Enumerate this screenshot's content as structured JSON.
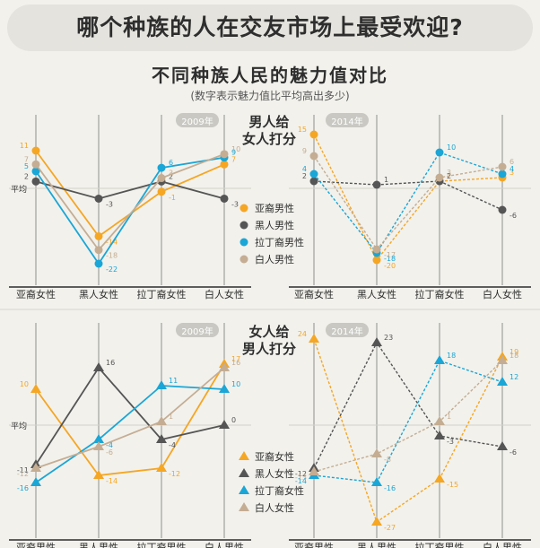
{
  "header": {
    "title": "哪个种族的人在交友市场上最受欢迎?",
    "subtitle": "不同种族人民的魅力值对比",
    "note": "(数字表示魅力值比平均高出多少)"
  },
  "colors": {
    "asian": "#f5a623",
    "black": "#555555",
    "latino": "#1aa6d6",
    "white": "#c4ad93"
  },
  "average_label": "平均",
  "chart_data": [
    {
      "type": "line",
      "panel": "men-2009",
      "year": "2009年",
      "title": "男人给\n女人打分",
      "categories": [
        "亚裔女性",
        "黑人女性",
        "拉丁裔女性",
        "白人女性"
      ],
      "ylim": [
        -25,
        15
      ],
      "series": [
        {
          "name": "亚裔男性",
          "color": "asian",
          "values": [
            11,
            -14,
            -1,
            7
          ]
        },
        {
          "name": "黑人男性",
          "color": "black",
          "values": [
            2,
            -3,
            2,
            -3
          ]
        },
        {
          "name": "拉丁裔男性",
          "color": "latino",
          "values": [
            5,
            -22,
            6,
            9
          ]
        },
        {
          "name": "白人男性",
          "color": "white",
          "values": [
            7,
            -18,
            3,
            10
          ]
        }
      ]
    },
    {
      "type": "line",
      "panel": "men-2014",
      "year": "2014年",
      "categories": [
        "亚裔女性",
        "黑人女性",
        "拉丁裔女性",
        "白人女性"
      ],
      "ylim": [
        -25,
        17
      ],
      "series": [
        {
          "name": "亚裔男性",
          "color": "asian",
          "values": [
            15,
            -20,
            2,
            3
          ]
        },
        {
          "name": "黑人男性",
          "color": "black",
          "values": [
            2,
            1,
            2,
            -6
          ]
        },
        {
          "name": "拉丁裔男性",
          "color": "latino",
          "values": [
            4,
            -18,
            10,
            4
          ]
        },
        {
          "name": "白人男性",
          "color": "white",
          "values": [
            9,
            -17,
            3,
            6
          ]
        }
      ]
    },
    {
      "type": "line",
      "panel": "women-2009",
      "year": "2009年",
      "title": "女人给\n男人打分",
      "categories": [
        "亚裔男性",
        "黑人男性",
        "拉丁裔男性",
        "白人男性"
      ],
      "ylim": [
        -30,
        25
      ],
      "series": [
        {
          "name": "亚裔女性",
          "color": "asian",
          "values": [
            10,
            -14,
            -12,
            17
          ]
        },
        {
          "name": "黑人女性",
          "color": "black",
          "values": [
            -11,
            16,
            -4,
            0
          ]
        },
        {
          "name": "拉丁裔女性",
          "color": "latino",
          "values": [
            -16,
            -4,
            11,
            10
          ]
        },
        {
          "name": "白人女性",
          "color": "white",
          "values": [
            -12,
            -6,
            1,
            16
          ]
        }
      ]
    },
    {
      "type": "line",
      "panel": "women-2014",
      "year": "2014年",
      "categories": [
        "亚裔男性",
        "黑人男性",
        "拉丁裔男性",
        "白人男性"
      ],
      "ylim": [
        -30,
        25
      ],
      "series": [
        {
          "name": "亚裔女性",
          "color": "asian",
          "values": [
            24,
            -27,
            -15,
            19
          ]
        },
        {
          "name": "黑人女性",
          "color": "black",
          "values": [
            -12,
            23,
            -3,
            -6
          ]
        },
        {
          "name": "拉丁裔女性",
          "color": "latino",
          "values": [
            -14,
            -16,
            18,
            12
          ]
        },
        {
          "name": "白人女性",
          "color": "white",
          "values": [
            -13,
            -8,
            1,
            18
          ]
        }
      ]
    }
  ]
}
